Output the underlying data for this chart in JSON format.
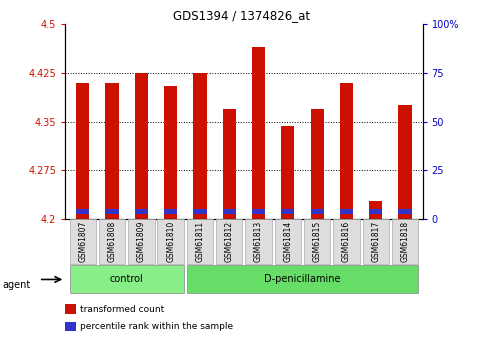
{
  "title": "GDS1394 / 1374826_at",
  "samples": [
    "GSM61807",
    "GSM61808",
    "GSM61809",
    "GSM61810",
    "GSM61811",
    "GSM61812",
    "GSM61813",
    "GSM61814",
    "GSM61815",
    "GSM61816",
    "GSM61817",
    "GSM61818"
  ],
  "transformed_count": [
    4.41,
    4.41,
    4.425,
    4.405,
    4.425,
    4.37,
    4.465,
    4.343,
    4.37,
    4.41,
    4.228,
    4.375
  ],
  "base": 4.2,
  "ylim_left": [
    4.2,
    4.5
  ],
  "ylim_right": [
    0,
    100
  ],
  "yticks_left": [
    4.2,
    4.275,
    4.35,
    4.425,
    4.5
  ],
  "yticks_right": [
    0,
    25,
    50,
    75,
    100
  ],
  "ytick_labels_left": [
    "4.2",
    "4.275",
    "4.35",
    "4.425",
    "4.5"
  ],
  "ytick_labels_right": [
    "0",
    "25",
    "50",
    "75",
    "100%"
  ],
  "bar_color_red": "#cc1100",
  "bar_color_blue": "#3333cc",
  "bar_width": 0.45,
  "blue_bar_height": 0.008,
  "blue_bar_bottom": 4.208,
  "groups": [
    {
      "label": "control",
      "start": 0,
      "end": 3,
      "color": "#88ee88"
    },
    {
      "label": "D-penicillamine",
      "start": 4,
      "end": 11,
      "color": "#66dd66"
    }
  ],
  "legend_items": [
    {
      "color": "#cc1100",
      "label": "transformed count"
    },
    {
      "color": "#3333cc",
      "label": "percentile rank within the sample"
    }
  ],
  "agent_label": "agent",
  "tick_label_color_left": "#cc1100",
  "tick_label_color_right": "#0000cc",
  "figure_bg": "white"
}
